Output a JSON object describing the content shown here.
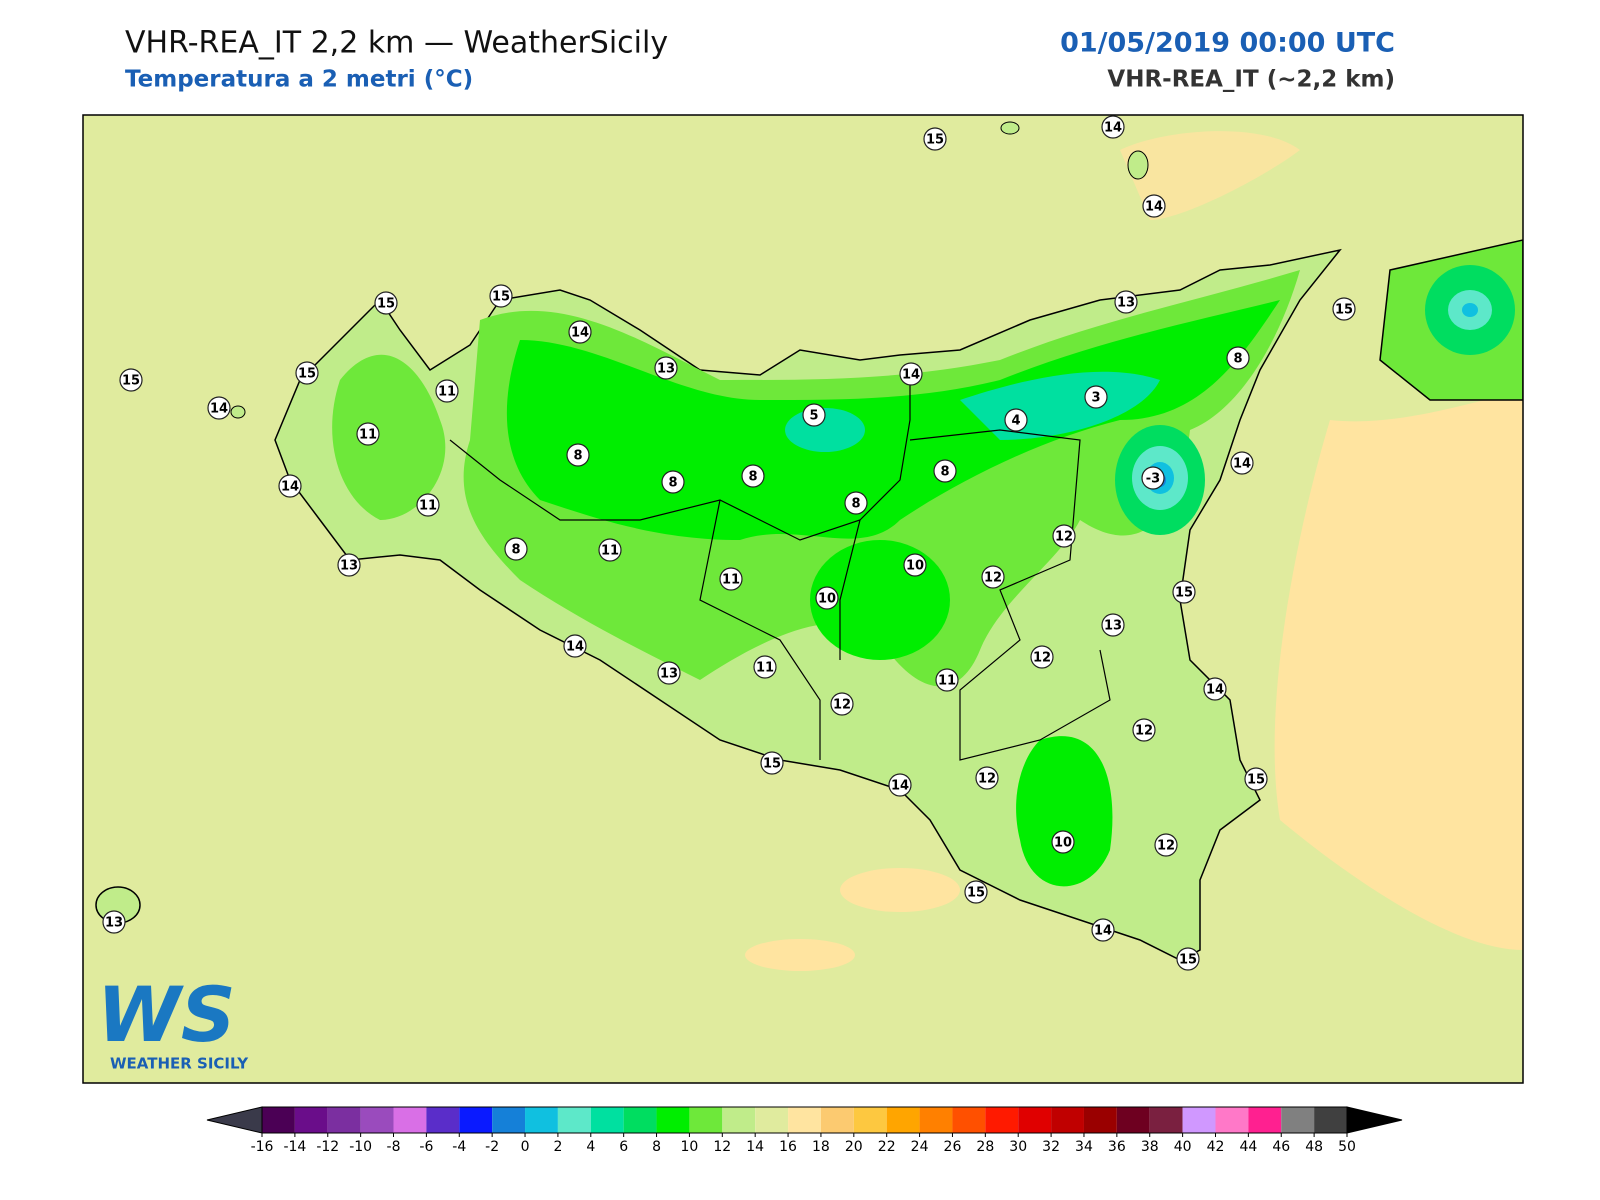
{
  "header": {
    "title": "VHR-REA_IT 2,2 km — WeatherSicily",
    "subtitle": "Temperatura a 2 metri (°C)",
    "datetime": "01/05/2019 00:00 UTC",
    "model": "VHR-REA_IT (~2,2 km)"
  },
  "logo": {
    "mark": "WS",
    "name": "WEATHER SICILY"
  },
  "stations": [
    15,
    14,
    14,
    15,
    15,
    14,
    15,
    15,
    14,
    11,
    11,
    14,
    11,
    13,
    8,
    8,
    8,
    13,
    5,
    14,
    4,
    3,
    13,
    15,
    8,
    -3,
    14,
    8,
    8,
    8,
    11,
    11,
    10,
    10,
    12,
    12,
    15,
    13,
    12,
    14,
    13,
    11,
    12,
    11,
    14,
    12,
    15,
    14,
    12,
    15,
    10,
    12,
    15,
    14,
    15,
    13
  ],
  "colorbar": {
    "levels": [
      -16,
      -14,
      -12,
      -10,
      -8,
      -6,
      -4,
      -2,
      0,
      2,
      4,
      6,
      8,
      10,
      12,
      14,
      16,
      18,
      20,
      22,
      24,
      26,
      28,
      30,
      32,
      34,
      36,
      38,
      40,
      42,
      44,
      46,
      48,
      50
    ],
    "colors": [
      "#4b0055",
      "#6a0d8a",
      "#7b2fa0",
      "#9a4bbd",
      "#d96fe6",
      "#5a2dc9",
      "#0a1aff",
      "#1580d8",
      "#10c0e0",
      "#5de8c9",
      "#00e0a0",
      "#00dd60",
      "#00ee00",
      "#6ee83a",
      "#c0ec8a",
      "#e0eb9e",
      "#ffe4a0",
      "#fcca70",
      "#fdc840",
      "#ffa500",
      "#ff8000",
      "#ff5000",
      "#ff1a00",
      "#e00000",
      "#c00000",
      "#9a0000",
      "#6e0020",
      "#7a2040",
      "#d098ff",
      "#ff78c8",
      "#ff2090",
      "#808080",
      "#404040"
    ],
    "under": "#3a3a4a",
    "over": "#000000"
  }
}
